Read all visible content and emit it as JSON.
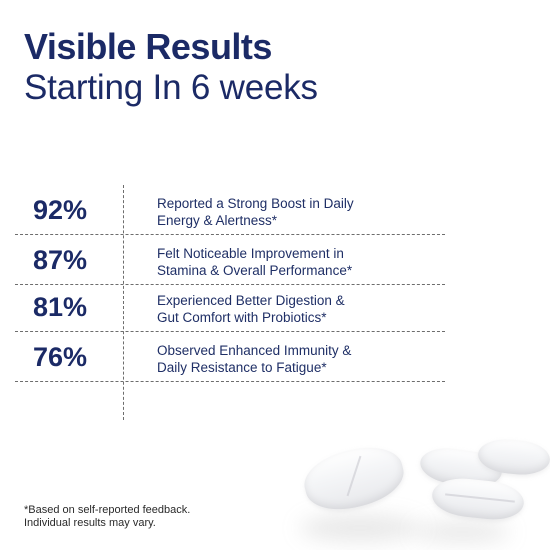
{
  "headline": {
    "title": "Visible Results",
    "subtitle": "Starting In 6 weeks"
  },
  "stats": [
    {
      "value": "92%",
      "text": "Reported a Strong Boost in Daily\nEnergy & Alertness*"
    },
    {
      "value": "87%",
      "text": "Felt Noticeable Improvement in\nStamina & Overall Performance*"
    },
    {
      "value": "81%",
      "text": "Experienced Better Digestion &\nGut Comfort with Probiotics*"
    },
    {
      "value": "76%",
      "text": "Observed Enhanced Immunity &\nDaily Resistance to Fatigue*"
    }
  ],
  "footnote": "*Based on self-reported feedback.\nIndividual results may vary.",
  "colors": {
    "primary": "#1b2a66",
    "background": "#ffffff",
    "divider": "#6d6d6d"
  }
}
